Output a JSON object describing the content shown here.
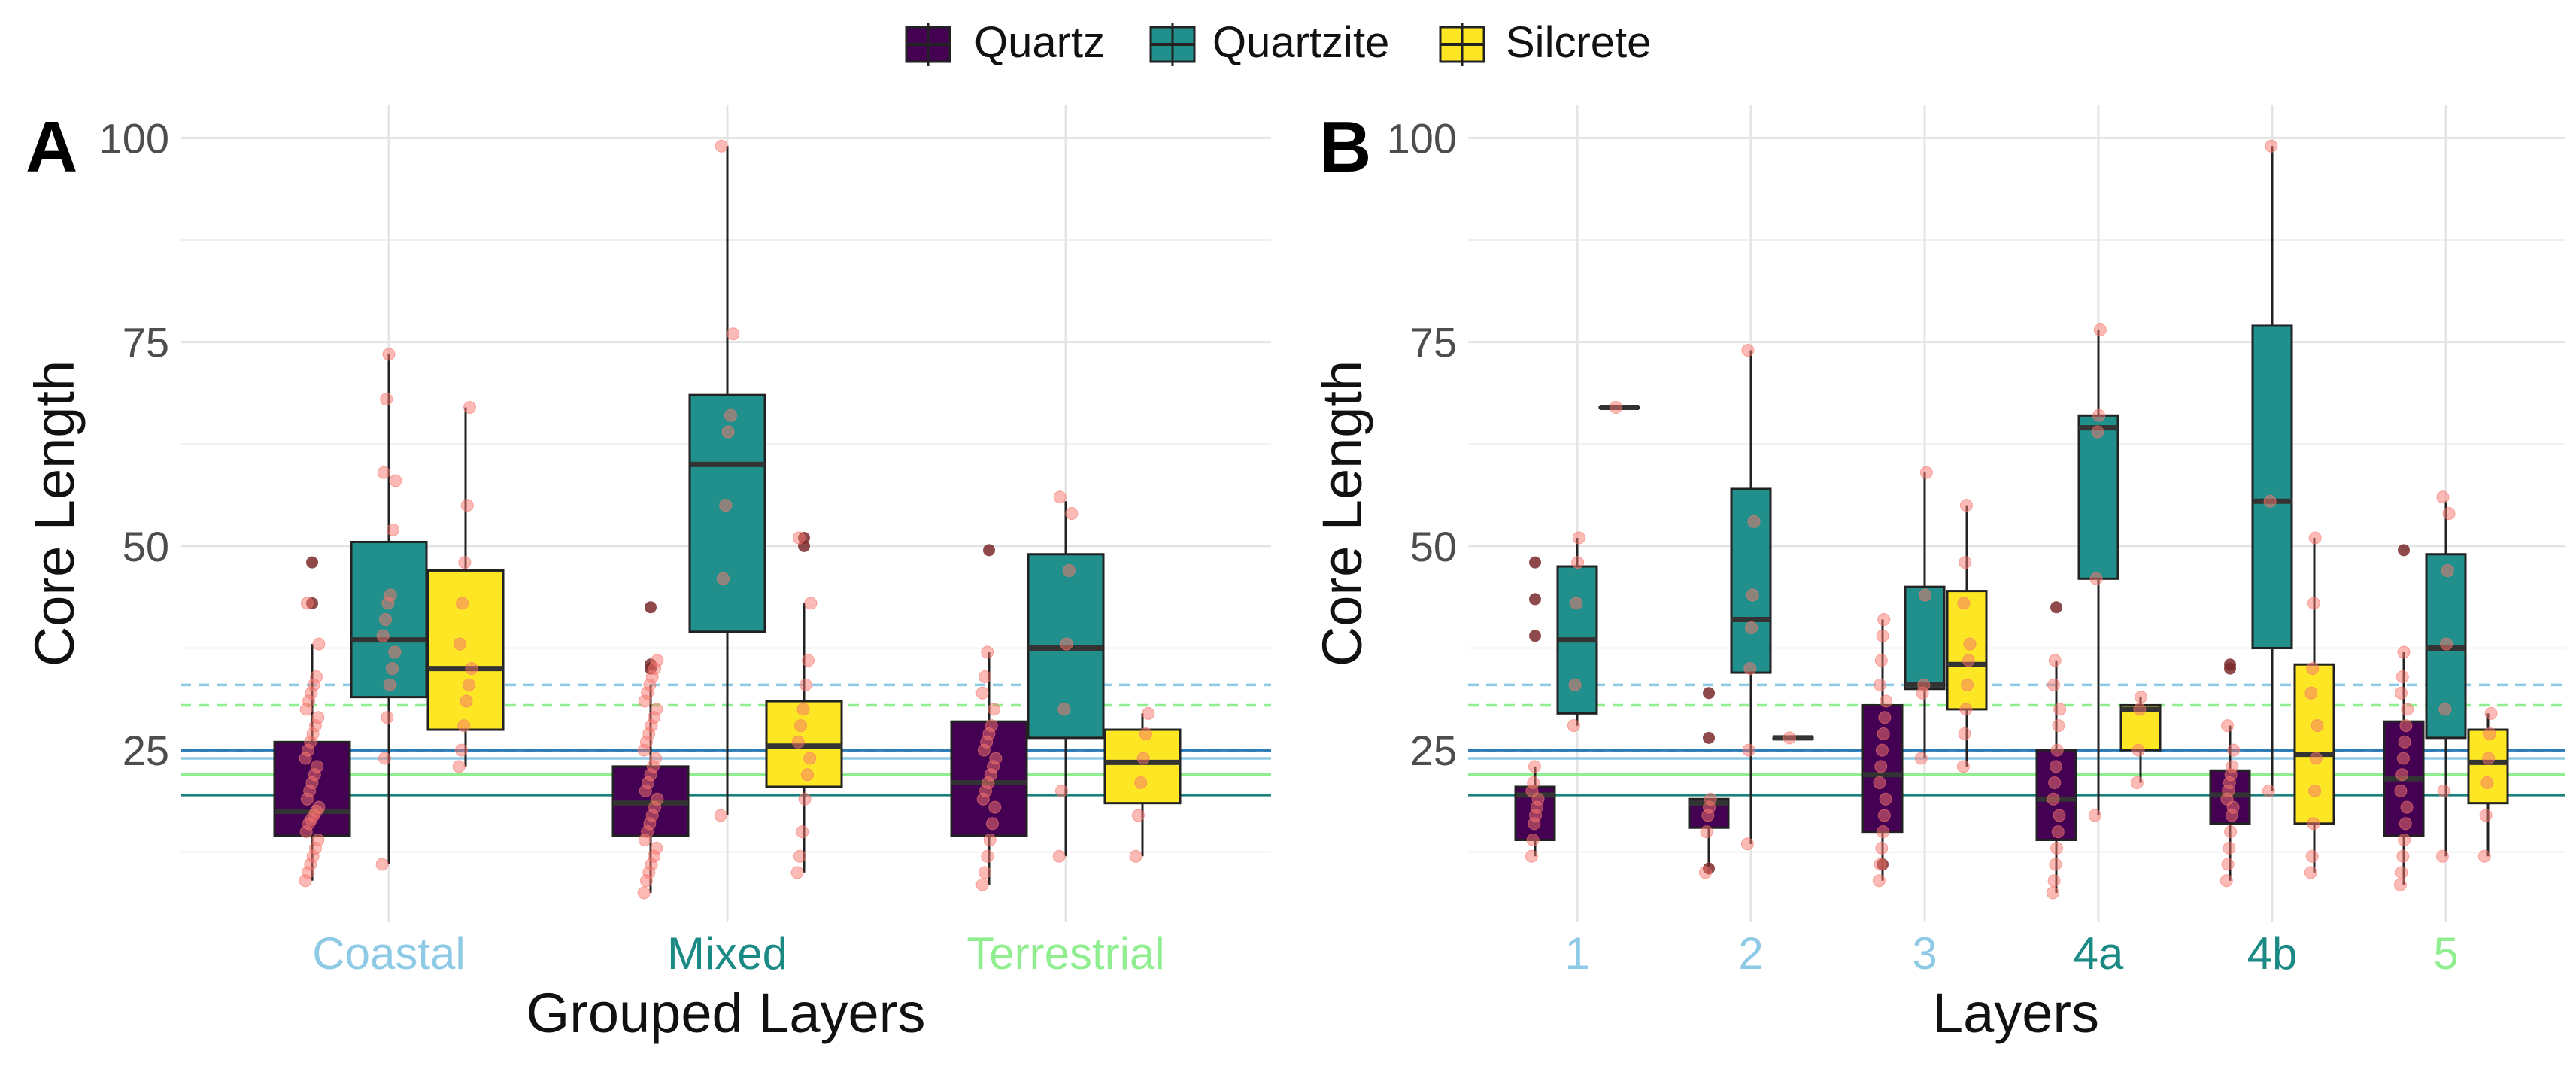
{
  "legend": {
    "placement": "top-center",
    "items": [
      {
        "label": "Quartz",
        "color": "#440154"
      },
      {
        "label": "Quartzite",
        "color": "#21908C"
      },
      {
        "label": "Silcrete",
        "color": "#FDE725"
      }
    ]
  },
  "reference_lines": [
    {
      "value": 33,
      "style": "dashed",
      "color": "#8ECAE6"
    },
    {
      "value": 30.5,
      "style": "dashed",
      "color": "#90EE90"
    },
    {
      "value": 25,
      "style": "dashed",
      "color": "#2C7BB6"
    },
    {
      "value": 25,
      "style": "solid",
      "color": "#2C7BB6"
    },
    {
      "value": 24,
      "style": "solid",
      "color": "#8ECAE6"
    },
    {
      "value": 22,
      "style": "solid",
      "color": "#90EE90"
    },
    {
      "value": 19.5,
      "style": "solid",
      "color": "#1B7F7A"
    }
  ],
  "chart_data": [
    {
      "panel_label": "A",
      "type": "box",
      "xlabel": "Grouped Layers",
      "ylabel": "Core Length",
      "ylim": [
        4,
        104
      ],
      "yticks": [
        25,
        50,
        75,
        100
      ],
      "grid": true,
      "categories": [
        {
          "label": "Coastal",
          "color": "#8ECAE6"
        },
        {
          "label": "Mixed",
          "color": "#1B8A84"
        },
        {
          "label": "Terrestrial",
          "color": "#90EE90"
        }
      ],
      "series": [
        {
          "name": "Quartz",
          "boxes": [
            {
              "q1": 14.5,
              "median": 17.5,
              "q3": 26,
              "whisker_low": 9,
              "whisker_high": 38,
              "outliers": [
                48,
                43
              ]
            },
            {
              "q1": 14.5,
              "median": 18.5,
              "q3": 23,
              "whisker_low": 7.5,
              "whisker_high": 33,
              "outliers": [
                35.5,
                35,
                42.5
              ]
            },
            {
              "q1": 14.5,
              "median": 21,
              "q3": 28.5,
              "whisker_low": 8.5,
              "whisker_high": 37,
              "outliers": [
                49.5
              ]
            }
          ]
        },
        {
          "name": "Quartzite",
          "boxes": [
            {
              "q1": 31.5,
              "median": 38.5,
              "q3": 50.5,
              "whisker_low": 11,
              "whisker_high": 73.5,
              "outliers": []
            },
            {
              "q1": 39.5,
              "median": 60,
              "q3": 68.5,
              "whisker_low": 17,
              "whisker_high": 99,
              "outliers": []
            },
            {
              "q1": 26.5,
              "median": 37.5,
              "q3": 49,
              "whisker_low": 12,
              "whisker_high": 55.5,
              "outliers": []
            }
          ]
        },
        {
          "name": "Silcrete",
          "boxes": [
            {
              "q1": 27.5,
              "median": 35,
              "q3": 47,
              "whisker_low": 23,
              "whisker_high": 67,
              "outliers": []
            },
            {
              "q1": 20.5,
              "median": 25.5,
              "q3": 31,
              "whisker_low": 10,
              "whisker_high": 43,
              "outliers": [
                51,
                50
              ]
            },
            {
              "q1": 18.5,
              "median": 23.5,
              "q3": 27.5,
              "whisker_low": 12,
              "whisker_high": 29.5,
              "outliers": []
            }
          ]
        }
      ],
      "jitter_points": [
        [
          [
            9,
            10,
            11,
            12,
            13,
            14,
            15,
            16,
            16.5,
            17,
            17.5,
            18,
            19,
            20,
            21,
            22,
            23,
            24,
            25,
            26,
            27,
            28,
            29,
            30,
            31,
            32,
            33,
            34,
            38,
            43
          ],
          [
            11,
            24,
            29,
            33,
            35,
            37,
            39,
            41,
            43,
            44,
            52,
            58,
            59,
            68,
            73.5
          ],
          [
            23,
            25,
            28,
            31,
            33,
            35,
            38,
            43,
            48,
            55,
            67
          ]
        ],
        [
          [
            7.5,
            9,
            10,
            11,
            12,
            13,
            14,
            15,
            16,
            17,
            18,
            19,
            20,
            21,
            22,
            23,
            24,
            25,
            26,
            27,
            28,
            29,
            30,
            31,
            32,
            33,
            34,
            35,
            36
          ],
          [
            17,
            46,
            55,
            64,
            66,
            76,
            99
          ],
          [
            10,
            12,
            15,
            19,
            22,
            24,
            26,
            28,
            30,
            33,
            36,
            43,
            51
          ]
        ],
        [
          [
            8.5,
            10,
            12,
            14,
            16,
            18,
            19,
            20,
            21,
            22,
            23,
            24,
            25,
            26,
            27,
            28,
            30,
            32,
            34,
            37
          ],
          [
            12,
            20,
            30,
            38,
            47,
            54,
            56
          ],
          [
            12,
            17,
            21,
            24,
            27,
            29.5
          ]
        ]
      ]
    },
    {
      "panel_label": "B",
      "type": "box",
      "xlabel": "Layers",
      "ylabel": "Core Length",
      "ylim": [
        4,
        104
      ],
      "yticks": [
        25,
        50,
        75,
        100
      ],
      "grid": true,
      "categories": [
        {
          "label": "1",
          "color": "#8ECAE6"
        },
        {
          "label": "2",
          "color": "#8ECAE6"
        },
        {
          "label": "3",
          "color": "#8ECAE6"
        },
        {
          "label": "4a",
          "color": "#1B8A84"
        },
        {
          "label": "4b",
          "color": "#1B8A84"
        },
        {
          "label": "5",
          "color": "#90EE90"
        }
      ],
      "series": [
        {
          "name": "Quartz",
          "boxes": [
            {
              "q1": 14,
              "median": 19.5,
              "q3": 20.5,
              "whisker_low": 12,
              "whisker_high": 23,
              "outliers": [
                48,
                43.5,
                39
              ]
            },
            {
              "q1": 15.5,
              "median": 18.5,
              "q3": 19,
              "whisker_low": 10,
              "whisker_high": 19,
              "outliers": [
                32,
                26.5,
                10.5
              ]
            },
            {
              "q1": 15,
              "median": 22,
              "q3": 30.5,
              "whisker_low": 9,
              "whisker_high": 41,
              "outliers": [
                11
              ]
            },
            {
              "q1": 14,
              "median": 19,
              "q3": 25,
              "whisker_low": 7.5,
              "whisker_high": 36,
              "outliers": [
                42.5
              ]
            },
            {
              "q1": 16,
              "median": 19.5,
              "q3": 22.5,
              "whisker_low": 9,
              "whisker_high": 28,
              "outliers": [
                35.5,
                35
              ]
            },
            {
              "q1": 14.5,
              "median": 21.5,
              "q3": 28.5,
              "whisker_low": 8.5,
              "whisker_high": 37,
              "outliers": [
                49.5
              ]
            }
          ]
        },
        {
          "name": "Quartzite",
          "boxes": [
            {
              "q1": 29.5,
              "median": 38.5,
              "q3": 47.5,
              "whisker_low": 28,
              "whisker_high": 51,
              "outliers": []
            },
            {
              "q1": 34.5,
              "median": 41,
              "q3": 57,
              "whisker_low": 13.5,
              "whisker_high": 74,
              "outliers": []
            },
            {
              "q1": 32.5,
              "median": 33,
              "q3": 45,
              "whisker_low": 24,
              "whisker_high": 59,
              "outliers": []
            },
            {
              "q1": 46,
              "median": 64.5,
              "q3": 66,
              "whisker_low": 17,
              "whisker_high": 76.5,
              "outliers": []
            },
            {
              "q1": 37.5,
              "median": 55.5,
              "q3": 77,
              "whisker_low": 20,
              "whisker_high": 99,
              "outliers": []
            },
            {
              "q1": 26.5,
              "median": 37.5,
              "q3": 49,
              "whisker_low": 12,
              "whisker_high": 55.5,
              "outliers": []
            }
          ]
        },
        {
          "name": "Silcrete",
          "boxes": [
            {
              "q1": 67,
              "median": 67,
              "q3": 67,
              "whisker_low": 67,
              "whisker_high": 67,
              "outliers": []
            },
            {
              "q1": 26.5,
              "median": 26.5,
              "q3": 26.5,
              "whisker_low": 26.5,
              "whisker_high": 26.5,
              "outliers": []
            },
            {
              "q1": 30,
              "median": 35.5,
              "q3": 44.5,
              "whisker_low": 23,
              "whisker_high": 55,
              "outliers": []
            },
            {
              "q1": 25,
              "median": 30,
              "q3": 30.5,
              "whisker_low": 21,
              "whisker_high": 31.5,
              "outliers": []
            },
            {
              "q1": 16,
              "median": 24.5,
              "q3": 35.5,
              "whisker_low": 10,
              "whisker_high": 51,
              "outliers": []
            },
            {
              "q1": 18.5,
              "median": 23.5,
              "q3": 27.5,
              "whisker_low": 12,
              "whisker_high": 29.5,
              "outliers": []
            }
          ]
        }
      ],
      "jitter_points": [
        [
          [
            12,
            14,
            16,
            17,
            18,
            19,
            20,
            21,
            23
          ],
          [
            28,
            33,
            43,
            48,
            51
          ],
          [
            67
          ]
        ],
        [
          [
            10,
            15,
            17,
            18,
            19
          ],
          [
            13.5,
            25,
            35,
            40,
            44,
            53,
            74
          ],
          [
            26.5
          ]
        ],
        [
          [
            9,
            11,
            13,
            15,
            17,
            19,
            21,
            23,
            25,
            27,
            29,
            31,
            33,
            36,
            39,
            41
          ],
          [
            24,
            32,
            33,
            44,
            59
          ],
          [
            23,
            27,
            30,
            33,
            36,
            38,
            43,
            48,
            55
          ]
        ],
        [
          [
            7.5,
            9,
            11,
            13,
            15,
            17,
            19,
            21,
            23,
            25,
            28,
            30,
            33,
            36
          ],
          [
            17,
            46,
            64,
            66,
            76.5
          ],
          [
            21,
            25,
            30,
            31.5
          ]
        ],
        [
          [
            9,
            11,
            13,
            15,
            17,
            18,
            19,
            20,
            21,
            22,
            23,
            25,
            28
          ],
          [
            20,
            55.5,
            99
          ],
          [
            10,
            12,
            16,
            20,
            24,
            28,
            32,
            35,
            43,
            51
          ]
        ],
        [
          [
            8.5,
            10,
            12,
            14,
            16,
            18,
            20,
            22,
            24,
            26,
            28,
            30,
            32,
            34,
            37
          ],
          [
            12,
            20,
            30,
            38,
            47,
            54,
            56
          ],
          [
            12,
            17,
            21,
            24,
            27,
            29.5
          ]
        ]
      ]
    }
  ]
}
